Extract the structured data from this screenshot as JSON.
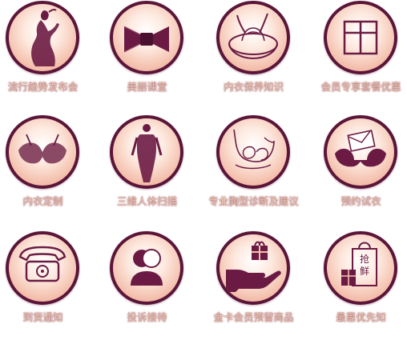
{
  "colors": {
    "ring": "#5a1538",
    "fill": "#f4c1ae",
    "label": "#f0c9b2",
    "icon": "#6b1b43"
  },
  "tiles": [
    {
      "label": "流行趋势发布会",
      "icon": "fashion-model-icon"
    },
    {
      "label": "美丽课堂",
      "icon": "bow-icon"
    },
    {
      "label": "内衣保养知识",
      "icon": "washing-basin-icon"
    },
    {
      "label": "会员专享套餐优惠",
      "icon": "gift-box-icon"
    },
    {
      "label": "内衣定制",
      "icon": "bra-icon"
    },
    {
      "label": "三维人体扫描",
      "icon": "body-scan-icon"
    },
    {
      "label": "专业胸型诊断及建议",
      "icon": "bust-fitting-icon"
    },
    {
      "label": "预约试衣",
      "icon": "bra-envelope-icon"
    },
    {
      "label": "到货通知",
      "icon": "telephone-icon"
    },
    {
      "label": "投诉接待",
      "icon": "user-support-icon"
    },
    {
      "label": "金卡会员预留商品",
      "icon": "gift-in-hand-icon"
    },
    {
      "label": "最惠优先知",
      "icon": "shopping-bag-icon"
    }
  ],
  "bag_text": [
    "抢",
    "鲜"
  ]
}
